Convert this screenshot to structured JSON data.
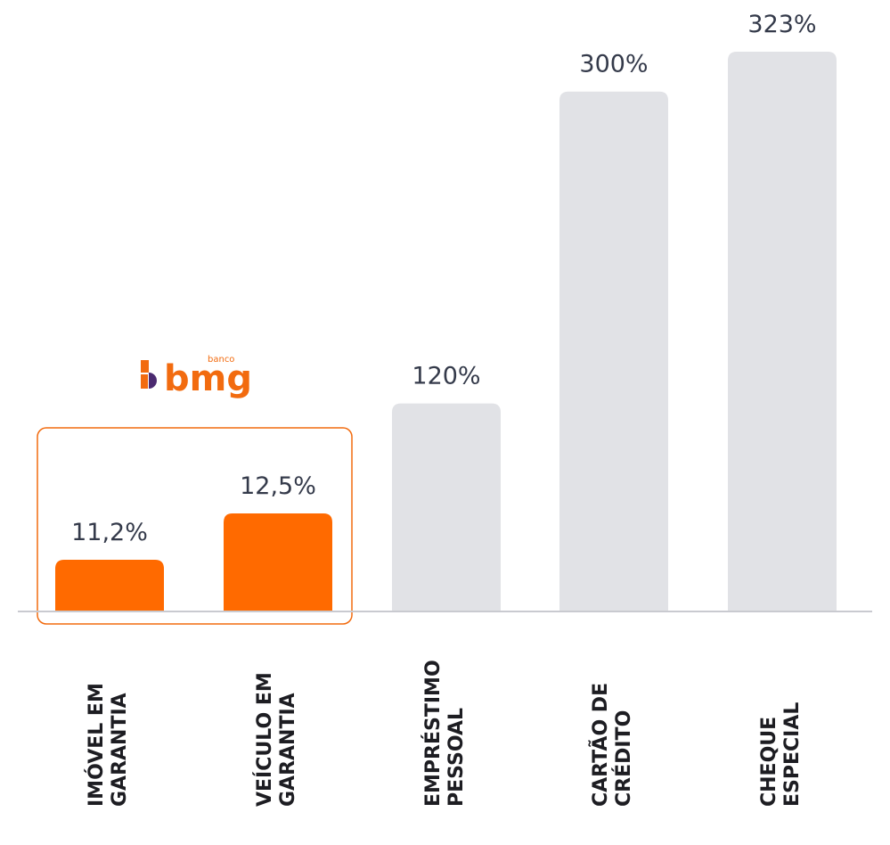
{
  "chart_data": {
    "type": "bar",
    "categories": [
      [
        "IMÓVEL EM",
        "GARANTIA"
      ],
      [
        "VEÍCULO EM",
        "GARANTIA"
      ],
      [
        "EMPRÉSTIMO",
        "PESSOAL"
      ],
      [
        "CARTÃO DE",
        "CRÉDITO"
      ],
      [
        "CHEQUE",
        "ESPECIAL"
      ]
    ],
    "values": [
      11.2,
      12.5,
      120,
      300,
      323
    ],
    "value_labels": [
      "11,2%",
      "12,5%",
      "120%",
      "300%",
      "323%"
    ],
    "highlighted": [
      true,
      true,
      false,
      false,
      false
    ],
    "legend_position": "none",
    "grid": false
  },
  "brand": {
    "small": "banco",
    "main": "bmg"
  },
  "colors": {
    "highlight_bar": "#ff6a00",
    "regular_bar": "#e1e2e6",
    "highlight_box": "#f26b0f",
    "axis": "#c9cad0",
    "value_text": "#343a4a",
    "category_text": "#1d1d22",
    "brand_purple": "#4b2a70",
    "brand_orange": "#f26b0f"
  }
}
